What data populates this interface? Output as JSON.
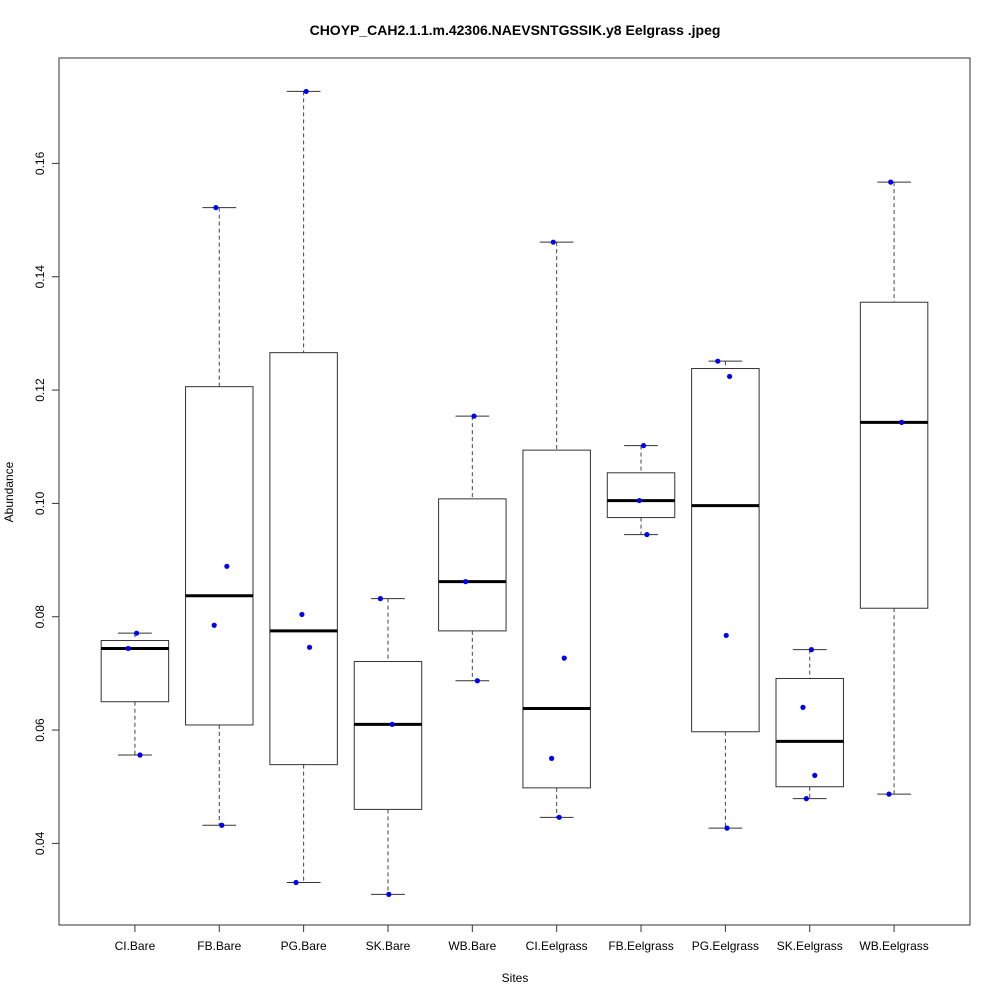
{
  "chart_data": {
    "type": "boxplot",
    "title": "CHOYP_CAH2.1.1.m.42306.NAEVSNTGSSIK.y8 Eelgrass .jpeg",
    "xlabel": "Sites",
    "ylabel": "Abundance",
    "ylim": [
      0.0256,
      0.1786
    ],
    "yticks": [
      0.04,
      0.06,
      0.08,
      0.1,
      0.12,
      0.14,
      0.16
    ],
    "ytick_labels": [
      "0.04",
      "0.06",
      "0.08",
      "0.10",
      "0.12",
      "0.14",
      "0.16"
    ],
    "grid": false,
    "point_color": "#0000ee",
    "categories": [
      "CI.Bare",
      "FB.Bare",
      "PG.Bare",
      "SK.Bare",
      "WB.Bare",
      "CI.Eelgrass",
      "FB.Eelgrass",
      "PG.Eelgrass",
      "SK.Eelgrass",
      "WB.Eelgrass"
    ],
    "boxes": [
      {
        "min": 0.0556,
        "q1": 0.065,
        "median": 0.0744,
        "q3": 0.0758,
        "max": 0.0771,
        "points": [
          0.0771,
          0.0744,
          0.0556
        ]
      },
      {
        "min": 0.0432,
        "q1": 0.0609,
        "median": 0.0837,
        "q3": 0.1206,
        "max": 0.1522,
        "points": [
          0.1522,
          0.0889,
          0.0785,
          0.0432
        ]
      },
      {
        "min": 0.0331,
        "q1": 0.0539,
        "median": 0.0775,
        "q3": 0.1266,
        "max": 0.1727,
        "points": [
          0.1727,
          0.0804,
          0.0746,
          0.0331
        ]
      },
      {
        "min": 0.031,
        "q1": 0.046,
        "median": 0.061,
        "q3": 0.0721,
        "max": 0.0832,
        "points": [
          0.0832,
          0.061,
          0.031
        ]
      },
      {
        "min": 0.0687,
        "q1": 0.0775,
        "median": 0.0862,
        "q3": 0.1008,
        "max": 0.1154,
        "points": [
          0.1154,
          0.0862,
          0.0687
        ]
      },
      {
        "min": 0.0446,
        "q1": 0.0498,
        "median": 0.0638,
        "q3": 0.1094,
        "max": 0.1461,
        "points": [
          0.1461,
          0.0727,
          0.055,
          0.0446
        ]
      },
      {
        "min": 0.0945,
        "q1": 0.0975,
        "median": 0.1005,
        "q3": 0.1054,
        "max": 0.1102,
        "points": [
          0.1102,
          0.1005,
          0.0945
        ]
      },
      {
        "min": 0.0427,
        "q1": 0.0597,
        "median": 0.0996,
        "q3": 0.1238,
        "max": 0.1251,
        "points": [
          0.1251,
          0.1224,
          0.0767,
          0.0427
        ]
      },
      {
        "min": 0.0479,
        "q1": 0.05,
        "median": 0.058,
        "q3": 0.0691,
        "max": 0.0742,
        "points": [
          0.0742,
          0.064,
          0.052,
          0.0479
        ]
      },
      {
        "min": 0.0487,
        "q1": 0.0815,
        "median": 0.1143,
        "q3": 0.1355,
        "max": 0.1567,
        "points": [
          0.1567,
          0.1143,
          0.0487
        ]
      }
    ]
  }
}
